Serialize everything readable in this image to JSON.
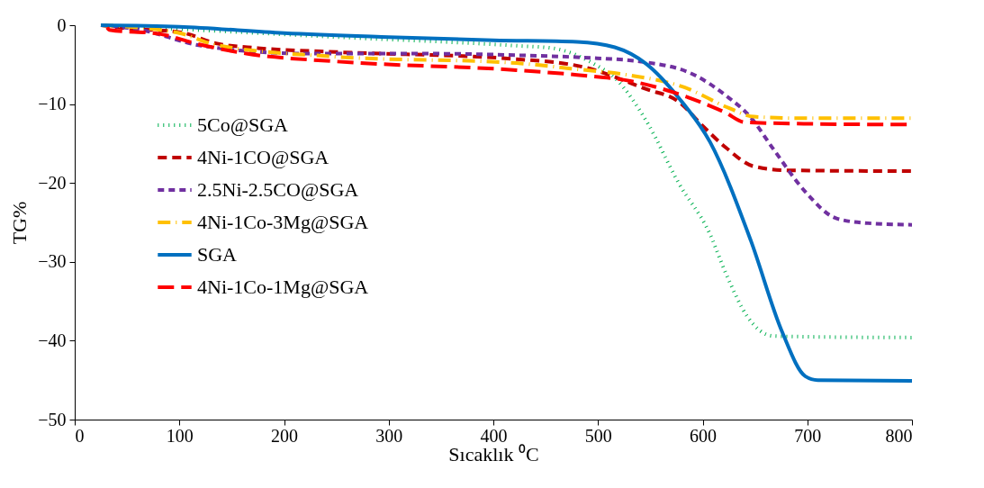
{
  "chart_data": {
    "type": "line",
    "xlabel": "Sıcaklık ⁰C",
    "ylabel": "TG%",
    "xlim": [
      0,
      800
    ],
    "ylim": [
      -50,
      0
    ],
    "xticks": [
      0,
      100,
      200,
      300,
      400,
      500,
      600,
      700,
      800
    ],
    "yticks": [
      -50,
      -40,
      -30,
      -20,
      -10,
      0
    ],
    "grid": false,
    "legend": "top left",
    "marker": "none",
    "series": [
      {
        "name": "5Co@SGA",
        "color": "#00b050",
        "line_style": "dotted",
        "x": [
          25,
          101,
          250,
          422,
          456,
          496,
          517,
          546,
          577,
          607,
          622,
          643,
          667,
          700,
          800
        ],
        "values": [
          0,
          -0.5,
          -1.5,
          -2.6,
          -2.9,
          -4.9,
          -6.8,
          -12.1,
          -20,
          -26.5,
          -31.4,
          -37,
          -39.4,
          -39.5,
          -39.6
        ]
      },
      {
        "name": "4Ni-1CO@SGA",
        "color": "#c00000",
        "line_style": "dashed",
        "x": [
          25,
          50,
          101,
          135,
          175,
          250,
          422,
          486,
          546,
          577,
          601,
          622,
          649,
          682,
          800
        ],
        "values": [
          0,
          -0.4,
          -0.9,
          -2.3,
          -2.9,
          -3.4,
          -4.3,
          -5.3,
          -8.1,
          -9.7,
          -12.9,
          -15.5,
          -17.9,
          -18.4,
          -18.5
        ]
      },
      {
        "name": "2.5Ni-2.5CO@SGA",
        "color": "#7030a0",
        "line_style": "dashed",
        "x": [
          25,
          60,
          121,
          221,
          336,
          422,
          486,
          546,
          592,
          622,
          646,
          667,
          698,
          728,
          758,
          800
        ],
        "values": [
          0,
          -0.5,
          -2.6,
          -3.6,
          -3.6,
          -3.8,
          -4.1,
          -4.7,
          -6.3,
          -8.9,
          -11.7,
          -15.6,
          -21.1,
          -24.5,
          -25.1,
          -25.3
        ]
      },
      {
        "name": "4Ni-1Co-3Mg@SGA",
        "color": "#ffc000",
        "line_style": "dashed",
        "x": [
          25,
          100,
          135,
          250,
          422,
          474,
          528,
          583,
          625,
          649,
          700,
          800
        ],
        "values": [
          0,
          -1,
          -2.5,
          -4,
          -4.8,
          -5.5,
          -6.3,
          -7.9,
          -10.5,
          -11.6,
          -11.8,
          -11.8
        ]
      },
      {
        "name": "SGA",
        "color": "#0070c0",
        "line_style": "solid",
        "x": [
          25,
          100,
          200,
          300,
          400,
          480,
          516,
          546,
          577,
          607,
          646,
          676,
          698,
          710,
          800
        ],
        "values": [
          0,
          -0.2,
          -1,
          -1.5,
          -1.9,
          -2.1,
          -2.8,
          -4.9,
          -9.2,
          -14.8,
          -27.3,
          -38.9,
          -44.5,
          -45,
          -45.1
        ]
      },
      {
        "name": "4Ni-1Co-1Mg@SGA",
        "color": "#ff0000",
        "line_style": "dashed",
        "x": [
          31,
          33,
          81,
          115,
          164,
          250,
          422,
          480,
          532,
          583,
          622,
          640,
          700,
          800
        ],
        "values": [
          -0.3,
          -0.6,
          -1.1,
          -2.3,
          -3.6,
          -4.6,
          -5.7,
          -6.3,
          -7.1,
          -9,
          -11.1,
          -12.3,
          -12.5,
          -12.6
        ]
      }
    ]
  }
}
